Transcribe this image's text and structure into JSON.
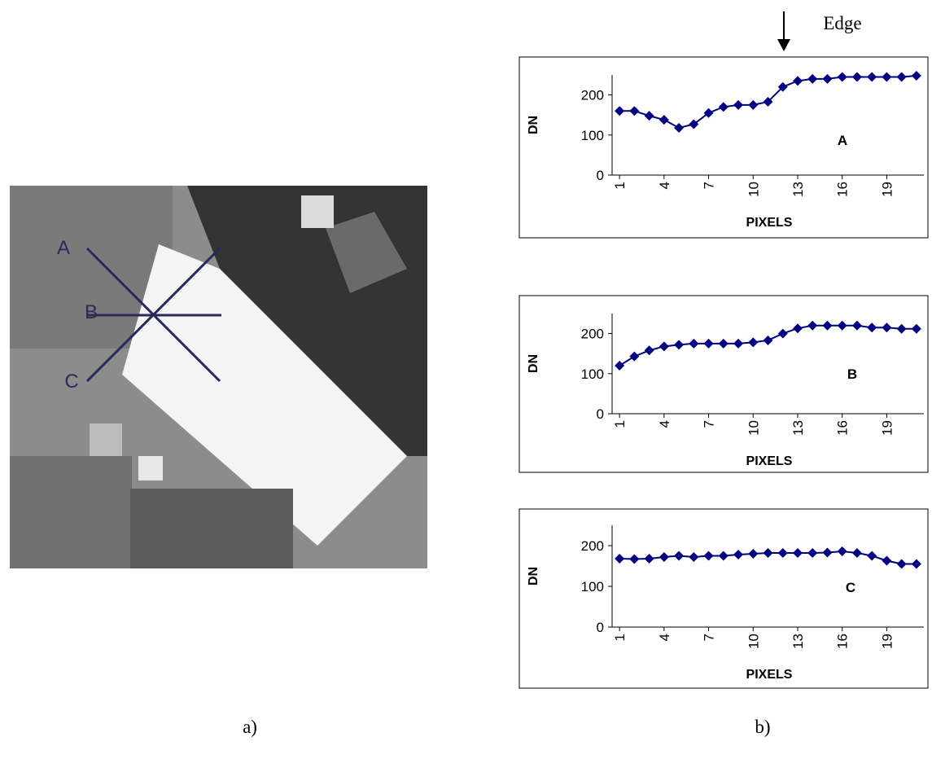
{
  "edge_label": "Edge",
  "image_labels": [
    "A",
    "B",
    "C"
  ],
  "captions": [
    "a)",
    "b)"
  ],
  "chart_data": [
    {
      "type": "line",
      "annotation": "A",
      "ylabel": "DN",
      "xlabel": "PIXELS",
      "color": "#000080",
      "x": [
        1,
        2,
        3,
        4,
        5,
        6,
        7,
        8,
        9,
        10,
        11,
        12,
        13,
        14,
        15,
        16,
        17,
        18,
        19,
        20,
        21
      ],
      "values": [
        160,
        160,
        148,
        138,
        118,
        127,
        155,
        170,
        175,
        175,
        183,
        220,
        235,
        240,
        240,
        245,
        245,
        245,
        245,
        245,
        248
      ],
      "xlim": [
        0.5,
        21.5
      ],
      "xticks": [
        1,
        4,
        7,
        10,
        13,
        16,
        19
      ],
      "ylim": [
        0,
        250
      ],
      "yticks": [
        0,
        100,
        200
      ]
    },
    {
      "type": "line",
      "annotation": "B",
      "ylabel": "DN",
      "xlabel": "PIXELS",
      "color": "#000080",
      "x": [
        1,
        2,
        3,
        4,
        5,
        6,
        7,
        8,
        9,
        10,
        11,
        12,
        13,
        14,
        15,
        16,
        17,
        18,
        19,
        20,
        21
      ],
      "values": [
        120,
        143,
        158,
        168,
        172,
        175,
        175,
        175,
        175,
        178,
        183,
        200,
        213,
        220,
        220,
        220,
        220,
        215,
        215,
        212,
        212
      ],
      "xlim": [
        0.5,
        21.5
      ],
      "xticks": [
        1,
        4,
        7,
        10,
        13,
        16,
        19
      ],
      "ylim": [
        0,
        250
      ],
      "yticks": [
        0,
        100,
        200
      ]
    },
    {
      "type": "line",
      "annotation": "C",
      "ylabel": "DN",
      "xlabel": "PIXELS",
      "color": "#000080",
      "x": [
        1,
        2,
        3,
        4,
        5,
        6,
        7,
        8,
        9,
        10,
        11,
        12,
        13,
        14,
        15,
        16,
        17,
        18,
        19,
        20,
        21
      ],
      "values": [
        168,
        167,
        168,
        172,
        175,
        172,
        175,
        175,
        178,
        180,
        182,
        182,
        182,
        182,
        183,
        186,
        182,
        175,
        163,
        155,
        155
      ],
      "xlim": [
        0.5,
        21.5
      ],
      "xticks": [
        1,
        4,
        7,
        10,
        13,
        16,
        19
      ],
      "ylim": [
        0,
        250
      ],
      "yticks": [
        0,
        100,
        200
      ]
    }
  ]
}
